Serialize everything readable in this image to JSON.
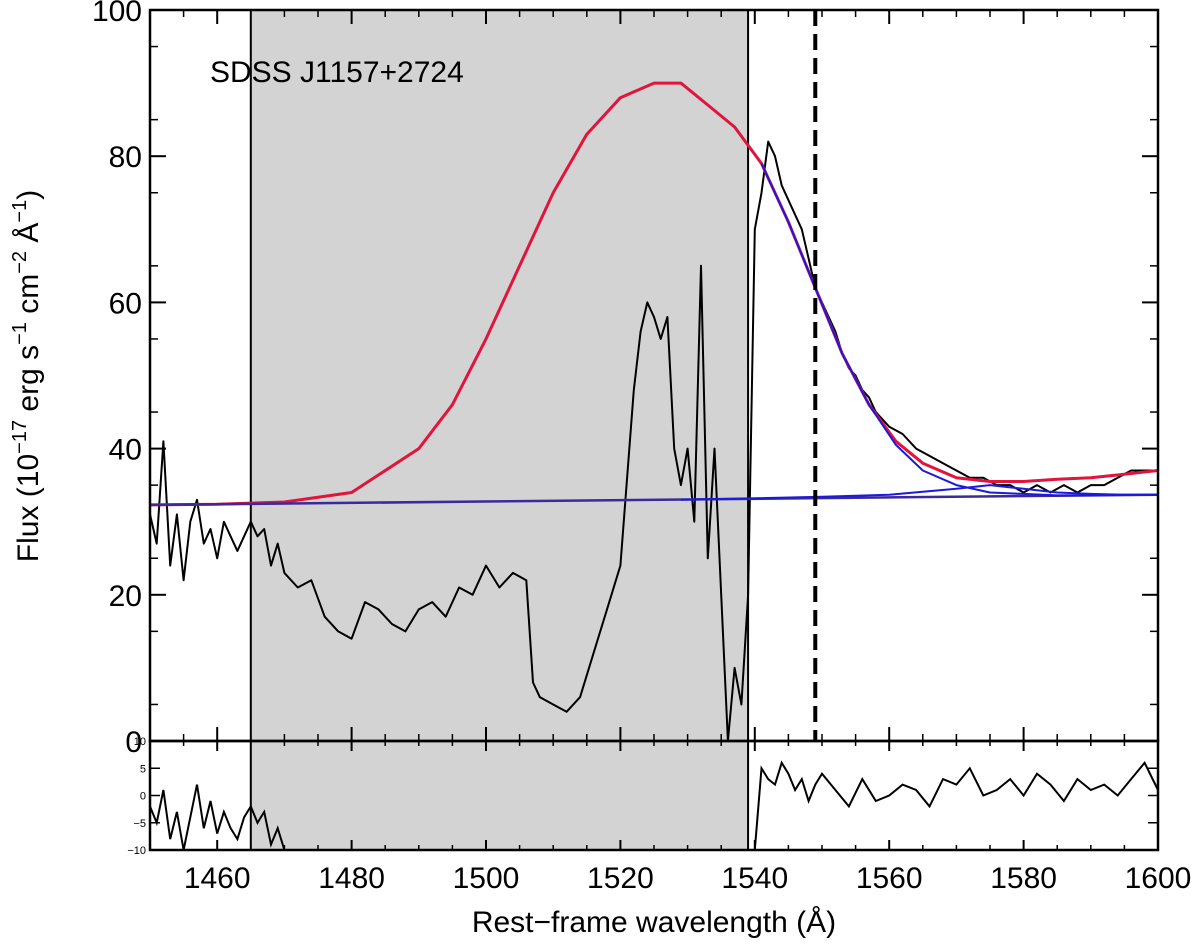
{
  "chart_data": {
    "type": "line",
    "title": "",
    "annotation": "SDSS J1157+2724",
    "xlabel": "Rest−frame wavelength (Å)",
    "ylabel": {
      "prefix": "Flux (10",
      "exp1": "−17",
      "mid1": " erg s",
      "exp2": "−1",
      "mid2": " cm",
      "exp3": "−2",
      "mid3": " Å",
      "exp4": "−1",
      "suffix": ")"
    },
    "xlim": [
      1450,
      1600
    ],
    "ylim": [
      0,
      100
    ],
    "xticks": [
      1460,
      1480,
      1500,
      1520,
      1540,
      1560,
      1580,
      1600
    ],
    "xtick_labels": [
      "1460",
      "1480",
      "1500",
      "1520",
      "1540",
      "1560",
      "1580",
      "1600"
    ],
    "yticks": [
      0,
      20,
      40,
      60,
      80,
      100
    ],
    "ytick_labels": [
      "0",
      "20",
      "40",
      "60",
      "80",
      "100"
    ],
    "masked_region": [
      1465,
      1539
    ],
    "dashed_line_x": 1549,
    "colors": {
      "data": "#000000",
      "model": "#e0143c",
      "components": "#1a1adc",
      "continuum": "#3a2a9a",
      "mask": "#d3d3d3"
    },
    "series": [
      {
        "x": [
          1450,
          1451,
          1452,
          1453,
          1454,
          1455,
          1456,
          1457,
          1458,
          1459,
          1460,
          1461,
          1462,
          1463,
          1464,
          1465,
          1466,
          1467,
          1468,
          1469,
          1470,
          1472,
          1474,
          1476,
          1478,
          1480,
          1482,
          1484,
          1486,
          1488,
          1490,
          1492,
          1494,
          1496,
          1498,
          1500,
          1502,
          1504,
          1506,
          1507,
          1508,
          1510,
          1512,
          1514,
          1516,
          1518,
          1520,
          1521,
          1522,
          1523,
          1524,
          1525,
          1526,
          1527,
          1528,
          1529,
          1530,
          1531,
          1532,
          1533,
          1534,
          1535,
          1536,
          1537,
          1538,
          1539,
          1540,
          1541,
          1542,
          1543,
          1544,
          1545,
          1546,
          1547,
          1548,
          1549,
          1550,
          1551,
          1552,
          1553,
          1554,
          1555,
          1556,
          1557,
          1558,
          1559,
          1560,
          1562,
          1564,
          1566,
          1568,
          1570,
          1572,
          1574,
          1576,
          1578,
          1580,
          1582,
          1584,
          1586,
          1588,
          1590,
          1592,
          1594,
          1596,
          1598,
          1600
        ],
        "y": [
          31,
          27,
          41,
          24,
          31,
          22,
          30,
          33,
          27,
          29,
          25,
          30,
          28,
          26,
          28,
          30,
          28,
          29,
          24,
          27,
          23,
          21,
          22,
          17,
          15,
          14,
          19,
          18,
          16,
          15,
          18,
          19,
          17,
          21,
          20,
          24,
          21,
          23,
          22,
          8,
          6,
          5,
          4,
          6,
          12,
          18,
          24,
          36,
          48,
          56,
          60,
          58,
          55,
          58,
          40,
          35,
          40,
          30,
          65,
          25,
          40,
          20,
          0,
          10,
          5,
          20,
          70,
          75,
          82,
          80,
          76,
          74,
          72,
          70,
          66,
          62,
          60,
          58,
          56,
          53,
          51,
          50,
          48,
          47,
          45,
          44,
          43,
          42,
          40,
          39,
          38,
          37,
          36,
          36,
          35,
          35,
          34,
          35,
          34,
          35,
          34,
          35,
          35,
          36,
          37,
          37,
          37
        ]
      },
      {
        "x": [
          1450,
          1460,
          1470,
          1480,
          1490,
          1495,
          1500,
          1505,
          1510,
          1515,
          1520,
          1525,
          1529,
          1533,
          1537,
          1541,
          1545,
          1549,
          1553,
          1557,
          1561,
          1565,
          1570,
          1575,
          1580,
          1585,
          1590,
          1595,
          1600
        ],
        "y": [
          32.3,
          32.4,
          32.7,
          34.0,
          40.0,
          46.0,
          55.0,
          65.0,
          75.0,
          83.0,
          88.0,
          90.0,
          90.0,
          87.0,
          84.0,
          79.0,
          71.0,
          62.0,
          53.0,
          46.0,
          41.0,
          38.0,
          36.0,
          35.5,
          35.5,
          35.8,
          36.0,
          36.5,
          37.0
        ]
      },
      {
        "x": [
          1450,
          1600
        ],
        "y": [
          32.3,
          33.7
        ]
      },
      {
        "x": [
          1541,
          1545,
          1549,
          1553,
          1557,
          1561,
          1565,
          1570,
          1575,
          1580,
          1585,
          1590,
          1595,
          1600
        ],
        "y": [
          79.0,
          71.0,
          62.0,
          53.0,
          46.0,
          40.5,
          37.0,
          35.0,
          34.0,
          33.8,
          33.6,
          33.6,
          33.7,
          33.7
        ]
      },
      {
        "x": [
          1529,
          1540,
          1550,
          1560,
          1570,
          1575,
          1580,
          1585,
          1590,
          1595,
          1600
        ],
        "y": [
          33.0,
          33.2,
          33.4,
          33.7,
          34.5,
          35.0,
          34.5,
          34.0,
          33.8,
          33.7,
          33.7
        ]
      }
    ],
    "residual": {
      "ylim": [
        -10,
        10
      ],
      "yticks": [
        -10,
        -5,
        0,
        5,
        10
      ],
      "ytick_labels": [
        "−10",
        "−5",
        "0",
        "5",
        "10"
      ],
      "x": [
        1450,
        1451,
        1452,
        1453,
        1454,
        1455,
        1456,
        1457,
        1458,
        1459,
        1460,
        1461,
        1462,
        1463,
        1464,
        1465,
        1466,
        1467,
        1468,
        1469,
        1470,
        1472,
        1474,
        1476,
        1478,
        1540,
        1541,
        1542,
        1543,
        1544,
        1545,
        1546,
        1547,
        1548,
        1549,
        1550,
        1552,
        1554,
        1556,
        1558,
        1560,
        1562,
        1564,
        1566,
        1568,
        1570,
        1572,
        1574,
        1576,
        1578,
        1580,
        1582,
        1584,
        1586,
        1588,
        1590,
        1592,
        1594,
        1596,
        1598,
        1600
      ],
      "y": [
        -2,
        -5,
        1,
        -8,
        -3,
        -10,
        -4,
        2,
        -6,
        -1,
        -7,
        -3,
        -6,
        -8,
        -4,
        -2,
        -5,
        -3,
        -9,
        -6,
        -10,
        -10,
        -10,
        -10,
        -10,
        -10,
        5,
        3,
        2,
        6,
        4,
        1,
        3,
        -1,
        2,
        4,
        1,
        -2,
        3,
        -1,
        0,
        2,
        1,
        -2,
        3,
        2,
        5,
        0,
        1,
        3,
        0,
        4,
        2,
        -1,
        3,
        1,
        2,
        0,
        3,
        6,
        1
      ]
    }
  }
}
